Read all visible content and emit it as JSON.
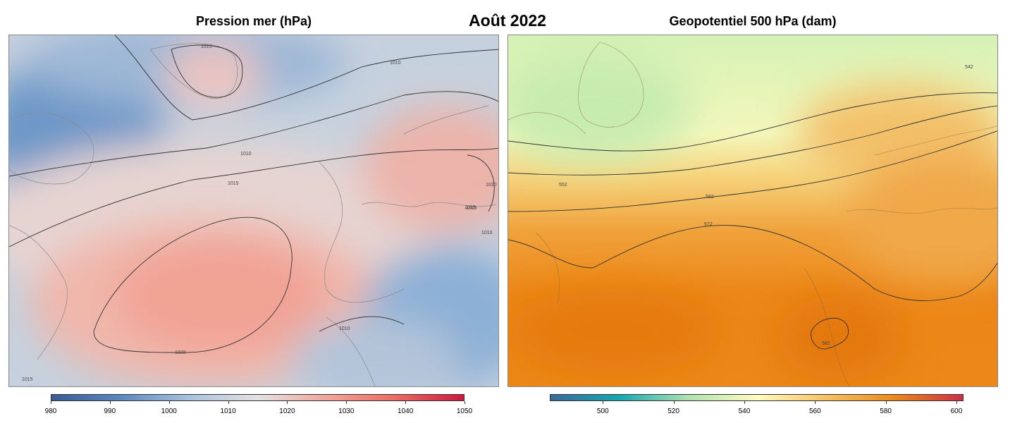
{
  "main_title": "Août 2022",
  "panels": [
    {
      "title": "Pression mer (hPa)",
      "contour_labels": [
        "1015",
        "1010",
        "1010",
        "1015",
        "1020",
        "1015",
        "1015",
        "1010",
        "1020",
        "1015",
        "1010"
      ],
      "colorbar": {
        "min": 980,
        "max": 1050,
        "ticks": [
          "980",
          "990",
          "1000",
          "1010",
          "1020",
          "1030",
          "1040",
          "1050"
        ],
        "colors": [
          "#3a5a95",
          "#5b88c0",
          "#a9c1dc",
          "#e3e2e2",
          "#f2a69b",
          "#ee6a62",
          "#c9193f"
        ]
      }
    },
    {
      "title": "Geopotentiel 500 hPa (dam)",
      "contour_labels": [
        "542",
        "552",
        "562",
        "572",
        "582"
      ],
      "colorbar": {
        "min": 485,
        "max": 602,
        "ticks": [
          "500",
          "520",
          "540",
          "560",
          "580",
          "600"
        ],
        "colors": [
          "#3a6a9a",
          "#17a7b0",
          "#aee2b0",
          "#fffbbf",
          "#f7c263",
          "#ec8a19",
          "#ce2f44"
        ]
      }
    }
  ]
}
